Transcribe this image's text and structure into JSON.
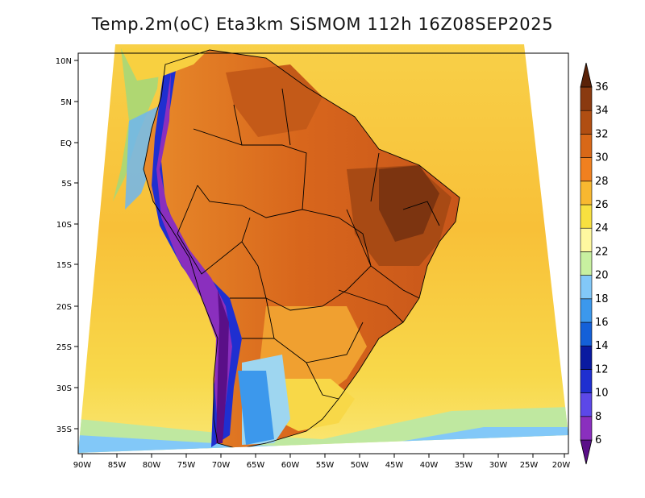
{
  "map": {
    "title": "Temp.2m(oC) Eta3km SiSMOM 112h 16Z08SEP2025",
    "variable": "Temperature at 2 m (°C)",
    "lat_labels": [
      "10N",
      "5N",
      "EQ",
      "5S",
      "10S",
      "15S",
      "20S",
      "25S",
      "30S",
      "35S"
    ],
    "lon_labels": [
      "90W",
      "85W",
      "80W",
      "75W",
      "70W",
      "65W",
      "60W",
      "55W",
      "50W",
      "45W",
      "40W",
      "35W",
      "30W",
      "25W",
      "20W"
    ]
  },
  "legend": {
    "levels": [
      "6",
      "8",
      "10",
      "12",
      "14",
      "16",
      "18",
      "20",
      "22",
      "24",
      "26",
      "28",
      "30",
      "32",
      "34",
      "36"
    ],
    "colors": [
      "#5a0f88",
      "#8a2fbe",
      "#5c48e8",
      "#1f2fd0",
      "#0a1aa0",
      "#1460d8",
      "#3c98ec",
      "#82c8f8",
      "#c8f0a0",
      "#fff8a0",
      "#f8e040",
      "#f8b830",
      "#f08020",
      "#d86818",
      "#b04e12",
      "#8a3a10",
      "#5a2208"
    ]
  }
}
